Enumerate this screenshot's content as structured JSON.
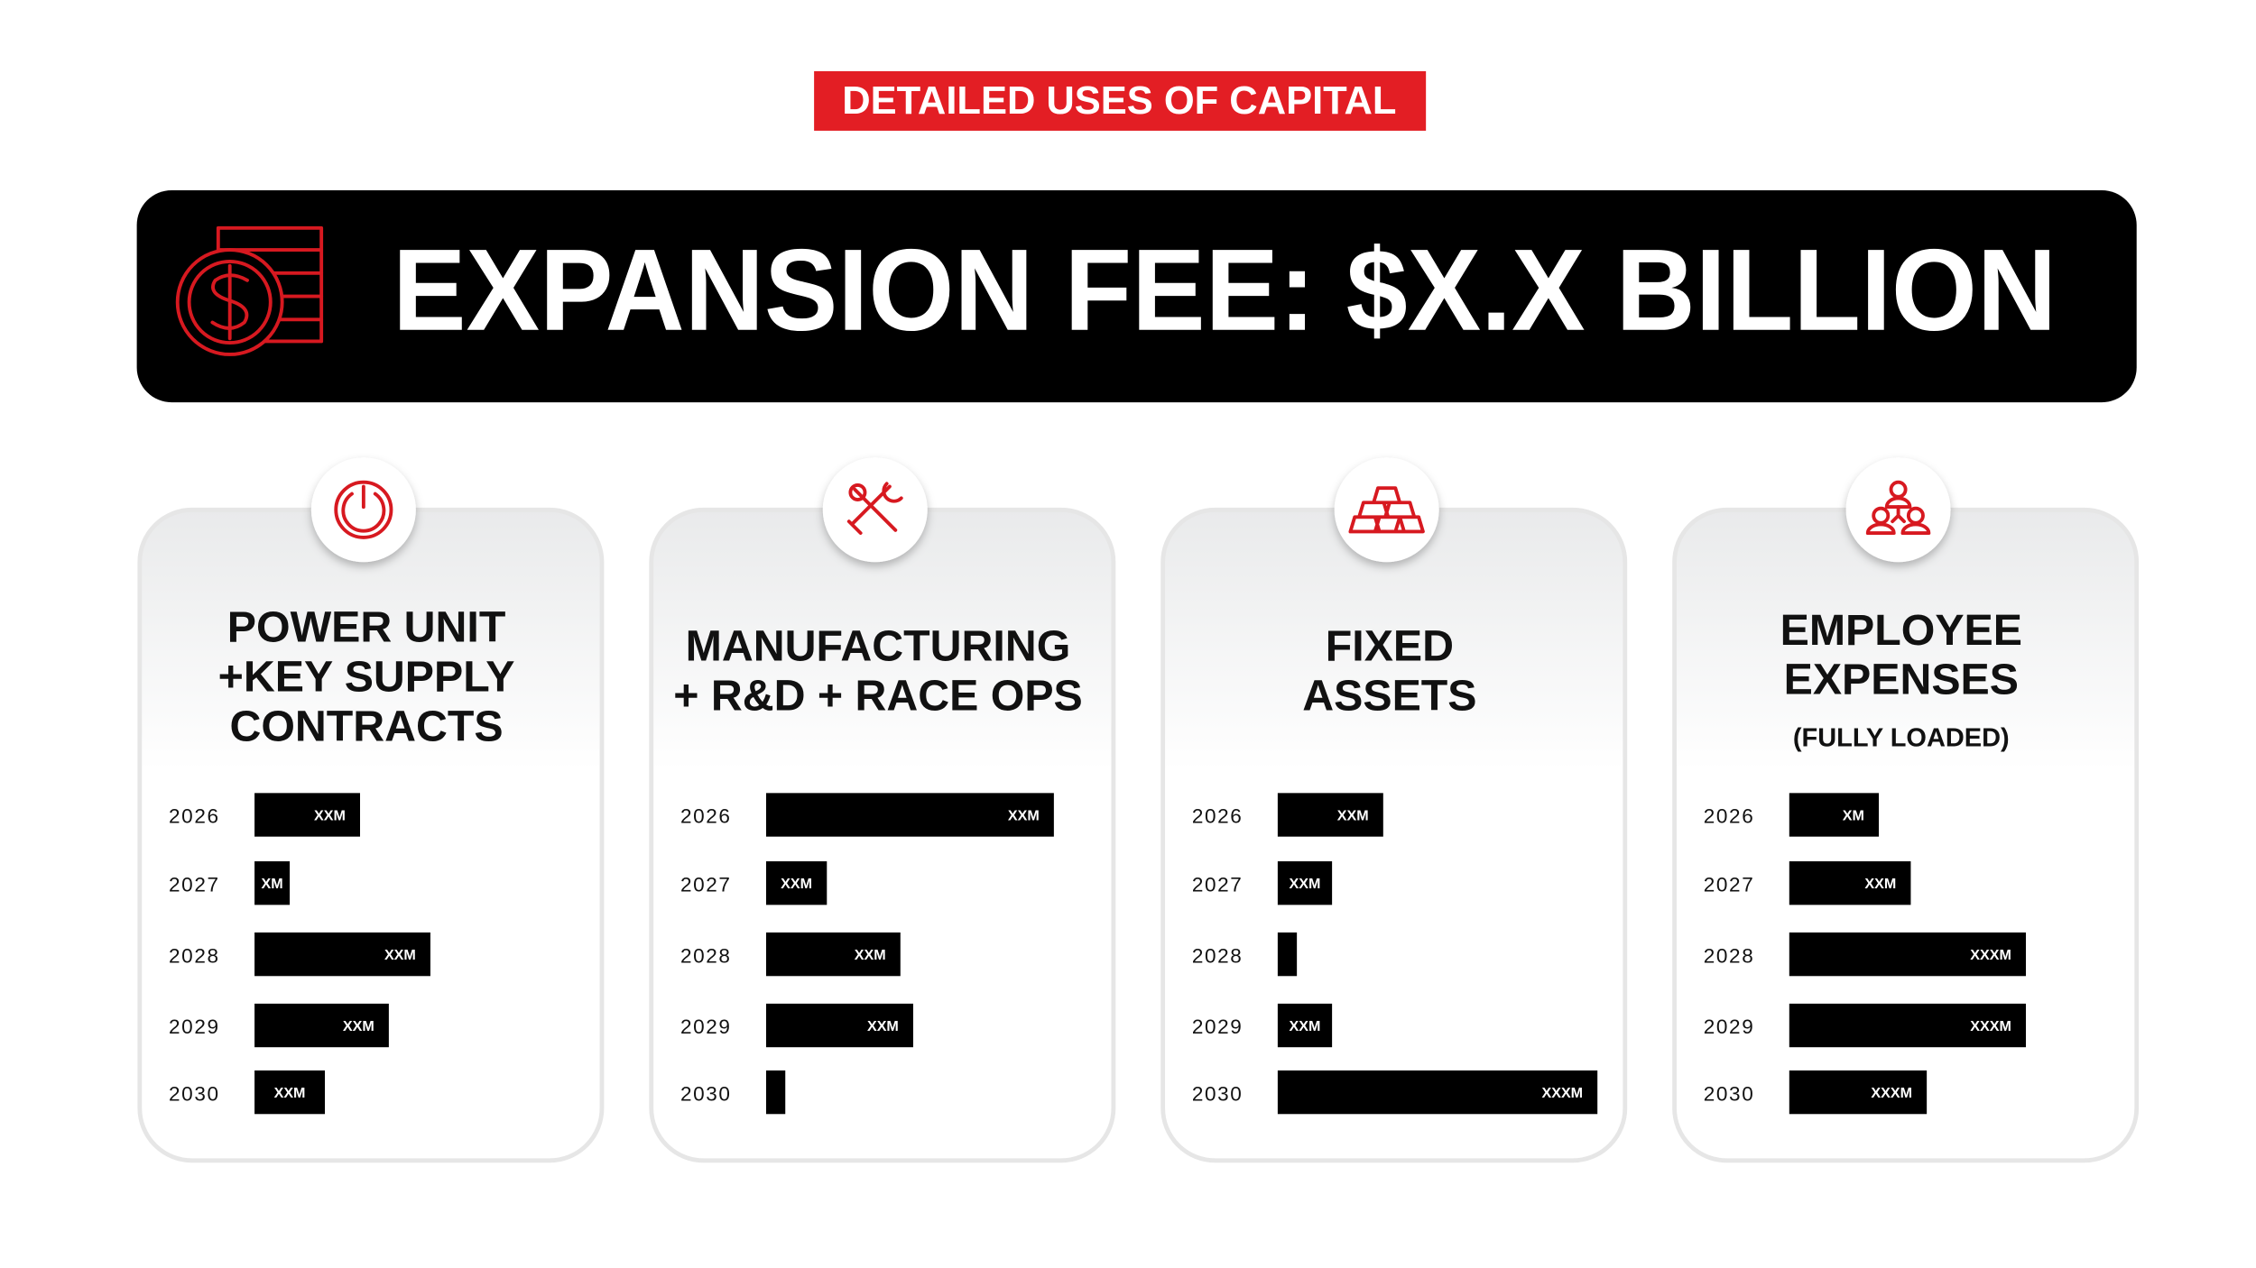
{
  "header": {
    "tag": "DETAILED USES OF CAPITAL",
    "title": "EXPANSION FEE: $X.X BILLION"
  },
  "chart_data": [
    {
      "type": "bar",
      "orientation": "horizontal",
      "title": [
        "POWER UNIT",
        "+KEY SUPPLY",
        "CONTRACTS"
      ],
      "color": "#000000",
      "categories": [
        "2026",
        "2027",
        "2028",
        "2029",
        "2030"
      ],
      "values": [
        33,
        11,
        55,
        42,
        22
      ],
      "value_labels": [
        "XXM",
        "XM",
        "XXM",
        "XXM",
        "XXM"
      ],
      "xlim": [
        0,
        100
      ]
    },
    {
      "type": "bar",
      "orientation": "horizontal",
      "title": [
        "MANUFACTURING",
        "+ R&D + RACE OPS"
      ],
      "color": "#000000",
      "categories": [
        "2026",
        "2027",
        "2028",
        "2029",
        "2030"
      ],
      "values": [
        90,
        19,
        42,
        46,
        6
      ],
      "value_labels": [
        "XXM",
        "XXM",
        "XXM",
        "XXM",
        null
      ],
      "xlim": [
        0,
        100
      ]
    },
    {
      "type": "bar",
      "orientation": "horizontal",
      "title": [
        "FIXED",
        "ASSETS"
      ],
      "color": "#000000",
      "categories": [
        "2026",
        "2027",
        "2028",
        "2029",
        "2030"
      ],
      "values": [
        33,
        17,
        6,
        17,
        100
      ],
      "value_labels": [
        "XXM",
        "XXM",
        null,
        "XXM",
        "XXXM"
      ],
      "xlim": [
        0,
        100
      ]
    },
    {
      "type": "bar",
      "orientation": "horizontal",
      "title": [
        "EMPLOYEE",
        "EXPENSES"
      ],
      "subtitle": "(FULLY LOADED)",
      "color": "#000000",
      "categories": [
        "2026",
        "2027",
        "2028",
        "2029",
        "2030"
      ],
      "values": [
        28,
        38,
        74,
        74,
        43
      ],
      "value_labels": [
        "XM",
        "XXM",
        "XXXM",
        "XXXM",
        "XXXM"
      ],
      "xlim": [
        0,
        100
      ]
    }
  ]
}
